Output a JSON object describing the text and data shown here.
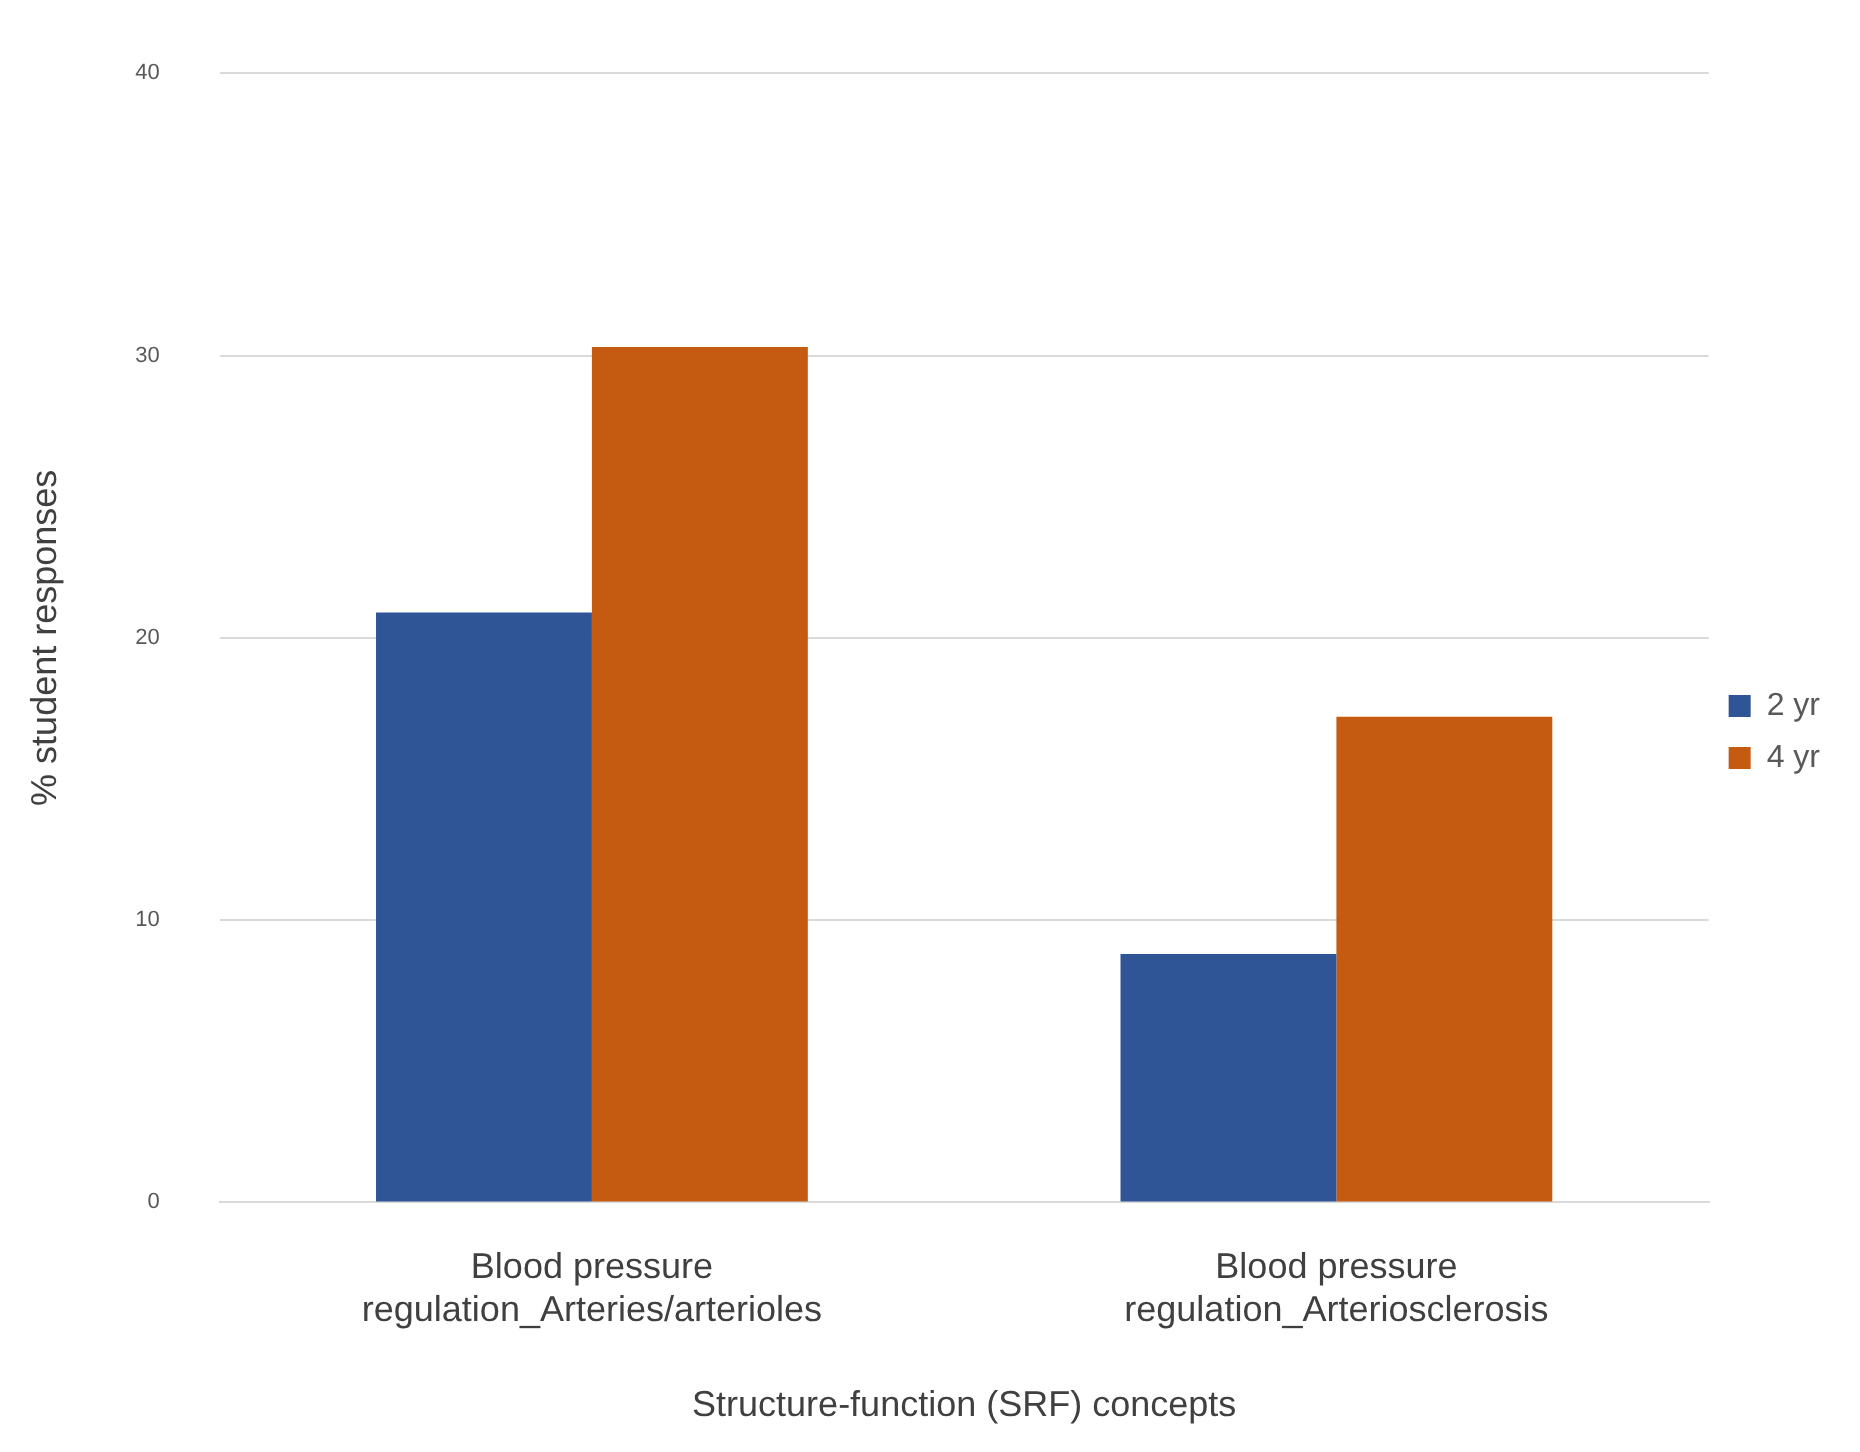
{
  "chart_data": {
    "type": "bar",
    "xlabel": "Structure-function (SRF) concepts",
    "ylabel": "% student responses",
    "categories": [
      "Blood pressure regulation_Arteries/arterioles",
      "Blood pressure regulation_Arteriosclerosis"
    ],
    "series": [
      {
        "name": "2 yr",
        "color": "#2f5597",
        "values": [
          20.9,
          8.8
        ]
      },
      {
        "name": "4 yr",
        "color": "#c55a11",
        "values": [
          30.3,
          17.2
        ]
      }
    ],
    "ylim": [
      0,
      40
    ],
    "yticks": [
      0,
      10,
      20,
      30,
      40
    ],
    "grid": "y",
    "legend": "right"
  }
}
